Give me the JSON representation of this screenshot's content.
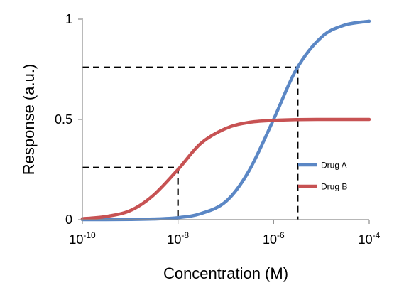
{
  "chart_data": {
    "type": "line",
    "title": "",
    "xlabel": "Concentration (M)",
    "ylabel": "Response (a.u.)",
    "x_scale": "log",
    "xlim": [
      1e-10,
      0.0001
    ],
    "ylim": [
      0,
      1
    ],
    "x_ticks": [
      {
        "value": 1e-10,
        "base": "10",
        "exp": "-10"
      },
      {
        "value": 1e-08,
        "base": "10",
        "exp": "-8"
      },
      {
        "value": 1e-06,
        "base": "10",
        "exp": "-6"
      },
      {
        "value": 0.0001,
        "base": "10",
        "exp": "-4"
      }
    ],
    "y_ticks": [
      {
        "value": 0,
        "label": "0"
      },
      {
        "value": 0.5,
        "label": "0.5"
      },
      {
        "value": 1,
        "label": "1"
      }
    ],
    "grid": false,
    "legend_position": "right",
    "series": [
      {
        "name": "Drug A",
        "color": "#5B87C5",
        "x": [
          1e-10,
          3e-10,
          1e-09,
          3e-09,
          1e-08,
          3e-08,
          1e-07,
          3e-07,
          1e-06,
          3e-06,
          1e-05,
          3e-05,
          0.0001
        ],
        "y": [
          0.0,
          0.0,
          0.001,
          0.003,
          0.01,
          0.03,
          0.09,
          0.24,
          0.5,
          0.75,
          0.91,
          0.97,
          0.99
        ]
      },
      {
        "name": "Drug B",
        "color": "#C75253",
        "x": [
          1e-10,
          3e-10,
          1e-09,
          3e-09,
          1e-08,
          3e-08,
          1e-07,
          3e-07,
          1e-06,
          3e-06,
          1e-05,
          3e-05,
          0.0001
        ],
        "y": [
          0.005,
          0.015,
          0.045,
          0.12,
          0.25,
          0.38,
          0.455,
          0.485,
          0.495,
          0.499,
          0.5,
          0.5,
          0.5
        ]
      }
    ],
    "reference_lines": [
      {
        "x": 1e-08,
        "y": 0.26,
        "style": "dashed"
      },
      {
        "x": 3.2e-06,
        "y": 0.76,
        "style": "dashed"
      }
    ]
  }
}
